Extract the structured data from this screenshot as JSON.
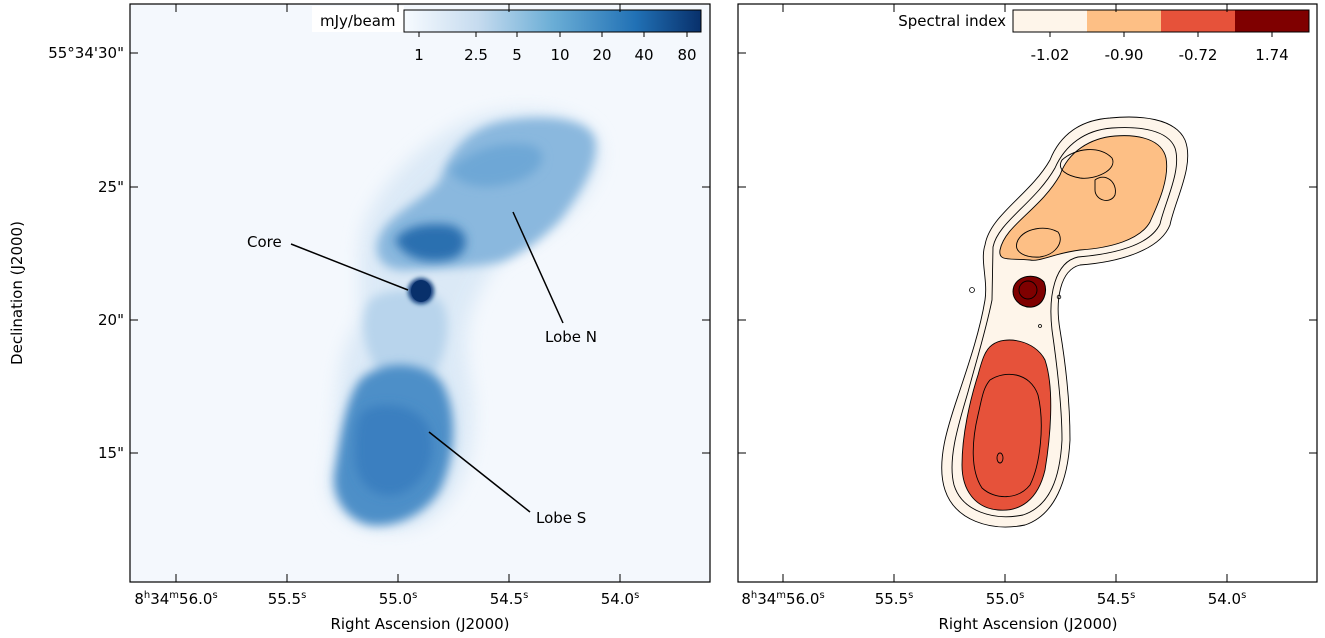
{
  "left_panel": {
    "colorbar": {
      "title": "mJy/beam",
      "tick_labels": [
        "1",
        "2.5",
        "5",
        "10",
        "20",
        "40",
        "80"
      ],
      "cmap": [
        "#f7fbff",
        "#c6dbef",
        "#6baed6",
        "#2171b5",
        "#08306b"
      ]
    },
    "annotations": {
      "core": "Core",
      "lobe_n": "Lobe N",
      "lobe_s": "Lobe S"
    },
    "y_ticks": [
      "55°34'30\"",
      "25\"",
      "20\"",
      "15\""
    ],
    "x_ticks": [
      "8h34m56.0s",
      "55.5s",
      "55.0s",
      "54.5s",
      "54.0s"
    ],
    "xlabel": "Right Ascension (J2000)",
    "ylabel": "Declination (J2000)"
  },
  "right_panel": {
    "colorbar": {
      "title": "Spectral index",
      "tick_labels": [
        "-1.02",
        "-0.90",
        "-0.72",
        "1.74"
      ],
      "colors": [
        "#fef5ea",
        "#fdbf85",
        "#e6523a",
        "#7f0000"
      ]
    },
    "x_ticks": [
      "8h34m56.0s",
      "55.5s",
      "55.0s",
      "54.5s",
      "54.0s"
    ],
    "xlabel": "Right Ascension (J2000)"
  },
  "colors": {
    "blue_dark": "#08306b",
    "blue_mid": "#2a74b8",
    "blue_light": "#9dc3e3",
    "background_left": "#f4f8fd"
  }
}
